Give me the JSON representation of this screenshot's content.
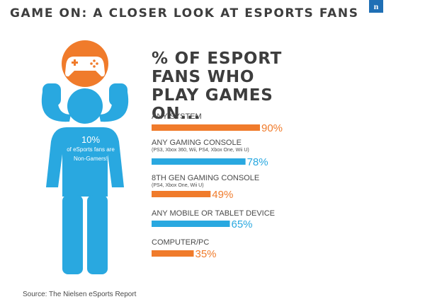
{
  "page": {
    "title": "GAME ON: A CLOSER LOOK AT ESPORTS FANS",
    "logo_text": "n",
    "source": "Source: The Nielsen eSports Report"
  },
  "figure": {
    "stat": "10%",
    "description": "of eSports fans are Non-Gamers!",
    "color": "#29a8e0",
    "controller_circle_color": "#f07b2b",
    "icon": "gamepad-icon"
  },
  "chart_data": {
    "type": "bar",
    "title": "% OF ESPORT FANS WHO PLAY GAMES ON...",
    "categories": [
      "ANY SYSTEM",
      "ANY GAMING CONSOLE",
      "8TH GEN GAMING CONSOLE",
      "ANY MOBILE OR TABLET DEVICE",
      "COMPUTER/PC"
    ],
    "subcategories": [
      "",
      "(PS3, Xbox 360, Wii, PS4, Xbox One, Wii U)",
      "(PS4, Xbox One, Wii U)",
      "",
      ""
    ],
    "values": [
      90,
      78,
      49,
      65,
      35
    ],
    "value_labels": [
      "90%",
      "78%",
      "49%",
      "65%",
      "35%"
    ],
    "bar_colors": [
      "#f07b2b",
      "#29a8e0",
      "#f07b2b",
      "#29a8e0",
      "#f07b2b"
    ],
    "xlim": [
      0,
      100
    ],
    "grid": false,
    "legend": "none"
  }
}
